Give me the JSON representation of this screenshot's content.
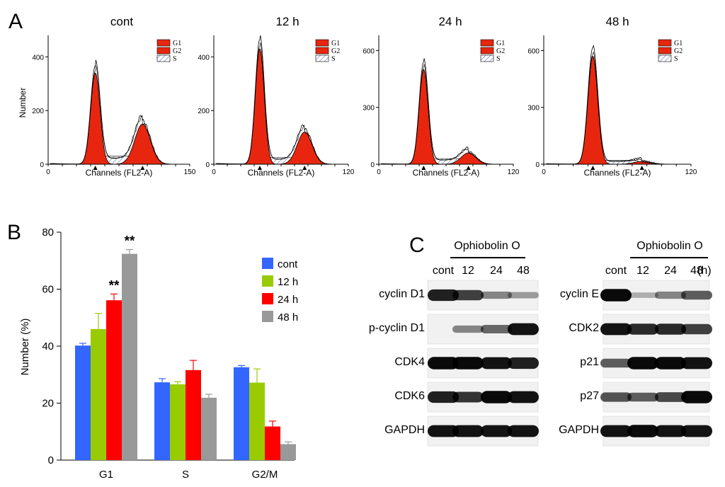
{
  "panel_letters": [
    "A",
    "B",
    "C"
  ],
  "chart_data": [
    {
      "type": "histogram",
      "title": "cont",
      "xlabel": "Channels (FL2-A)",
      "ylabel": "Number",
      "xlim": [
        0,
        150
      ],
      "ylim": [
        0,
        480
      ],
      "x_ticks": [
        "0",
        "150"
      ],
      "y_ticks": [
        "0",
        "200",
        "400"
      ],
      "legend": [
        "G1",
        "G2",
        "S"
      ],
      "peaks": {
        "g1_channel": 50,
        "g1_height": 340,
        "g2_channel": 100,
        "g2_height": 150,
        "s_height": 30
      }
    },
    {
      "type": "histogram",
      "title": "12 h",
      "xlabel": "Channels (FL2-A)",
      "ylabel": "",
      "xlim": [
        0,
        120
      ],
      "ylim": [
        0,
        480
      ],
      "x_ticks": [
        "0",
        "120"
      ],
      "y_ticks": [
        "0",
        "200",
        "400"
      ],
      "legend": [
        "G1",
        "G2",
        "S"
      ],
      "peaks": {
        "g1_channel": 41,
        "g1_height": 430,
        "g2_channel": 81,
        "g2_height": 120,
        "s_height": 25
      }
    },
    {
      "type": "histogram",
      "title": "24 h",
      "xlabel": "Channels (FL2-A)",
      "ylabel": "",
      "xlim": [
        0,
        120
      ],
      "ylim": [
        0,
        680
      ],
      "x_ticks": [
        "0",
        "120"
      ],
      "y_ticks": [
        "0",
        "300",
        "600"
      ],
      "legend": [
        "G1",
        "G2",
        "S"
      ],
      "peaks": {
        "g1_channel": 40,
        "g1_height": 500,
        "g2_channel": 80,
        "g2_height": 60,
        "s_height": 30
      }
    },
    {
      "type": "histogram",
      "title": "48 h",
      "xlabel": "Channels (FL2-A)",
      "ylabel": "",
      "xlim": [
        0,
        120
      ],
      "ylim": [
        0,
        680
      ],
      "x_ticks": [
        "0",
        "120"
      ],
      "y_ticks": [
        "0",
        "300",
        "600"
      ],
      "legend": [
        "G1",
        "G2",
        "S"
      ],
      "peaks": {
        "g1_channel": 40,
        "g1_height": 570,
        "g2_channel": 80,
        "g2_height": 15,
        "s_height": 20
      }
    },
    {
      "type": "bar",
      "title": "",
      "xlabel": "",
      "ylabel": "Number (%)",
      "ylim": [
        0,
        80
      ],
      "y_ticks": [
        "0",
        "20",
        "40",
        "60",
        "80"
      ],
      "categories": [
        "G1",
        "S",
        "G2/M"
      ],
      "series": [
        {
          "name": "cont",
          "values": [
            40.2,
            27.3,
            32.6
          ],
          "errors": [
            0.8,
            1.3,
            0.6
          ],
          "color": "#3366ff"
        },
        {
          "name": "12 h",
          "values": [
            46.0,
            26.6,
            27.2
          ],
          "errors": [
            5.5,
            0.9,
            4.8
          ],
          "color": "#99cc00"
        },
        {
          "name": "24 h",
          "values": [
            56.1,
            31.6,
            11.8
          ],
          "errors": [
            2.2,
            3.4,
            1.9
          ],
          "color": "#ff0000"
        },
        {
          "name": "48 h",
          "values": [
            72.4,
            21.9,
            5.6
          ],
          "errors": [
            1.5,
            1.2,
            0.8
          ],
          "color": "#999999"
        }
      ],
      "annotations": [
        {
          "category": "G1",
          "series": "24 h",
          "text": "**"
        },
        {
          "category": "G1",
          "series": "48 h",
          "text": "**"
        }
      ],
      "legend_position": "right"
    }
  ],
  "blots": [
    {
      "treatment": "Ophiobolin O",
      "lanes": [
        "cont",
        "12",
        "24",
        "48"
      ],
      "unit": "",
      "proteins": [
        "cyclin D1",
        "p-cyclin D1",
        "CDK4",
        "CDK6",
        "GAPDH"
      ],
      "intensities": [
        [
          0.85,
          0.7,
          0.35,
          0.25
        ],
        [
          0.0,
          0.35,
          0.5,
          0.9
        ],
        [
          0.95,
          0.95,
          0.9,
          0.85
        ],
        [
          0.85,
          0.75,
          0.95,
          0.9
        ],
        [
          0.9,
          0.9,
          0.9,
          0.9
        ]
      ]
    },
    {
      "treatment": "Ophiobolin O",
      "lanes": [
        "cont",
        "12",
        "24",
        "48"
      ],
      "unit": "(h)",
      "proteins": [
        "cyclin E",
        "CDK2",
        "p21",
        "p27",
        "GAPDH"
      ],
      "intensities": [
        [
          0.95,
          0.15,
          0.35,
          0.55
        ],
        [
          0.9,
          0.8,
          0.8,
          0.7
        ],
        [
          0.55,
          0.95,
          0.95,
          0.9
        ],
        [
          0.6,
          0.55,
          0.65,
          0.95
        ],
        [
          0.9,
          0.95,
          0.9,
          0.9
        ]
      ]
    }
  ],
  "colors": {
    "g1": "#e8260f",
    "g2": "#e8260f",
    "s_hatch": "#5a6fa8"
  }
}
